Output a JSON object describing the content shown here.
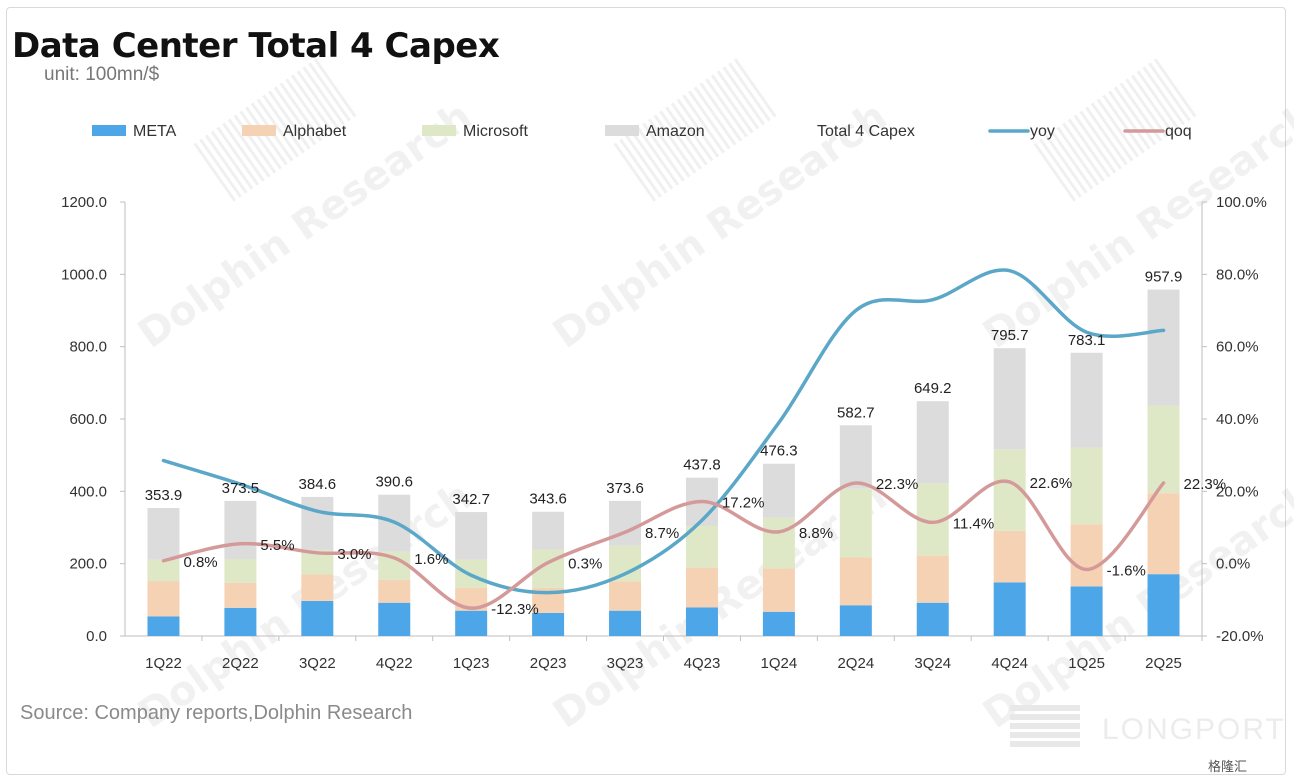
{
  "watermark": "Dolphin Research",
  "logo_text": "LONGPORT",
  "badge_text": "格隆汇",
  "chart_data": {
    "type": "bar",
    "title": "Data Center Total 4 Capex",
    "unit": "unit: 100mn/$",
    "source": "Source: Company reports,Dolphin Research",
    "categories": [
      "1Q22",
      "2Q22",
      "3Q22",
      "4Q22",
      "1Q23",
      "2Q23",
      "3Q23",
      "4Q23",
      "1Q24",
      "2Q24",
      "3Q24",
      "4Q24",
      "1Q25",
      "2Q25"
    ],
    "stacked": true,
    "series": [
      {
        "name": "META",
        "color": "#4da6e8",
        "values": [
          54,
          78,
          97,
          92,
          70,
          64,
          70,
          79,
          67,
          85,
          92,
          148,
          137,
          171
        ]
      },
      {
        "name": "Alphabet",
        "color": "#f6d2b4",
        "values": [
          98,
          69,
          73,
          63,
          63,
          69,
          81,
          110,
          120,
          132,
          130,
          143,
          172,
          224
        ]
      },
      {
        "name": "Microsoft",
        "color": "#dfe8c6",
        "values": [
          59,
          66,
          68,
          78,
          78,
          106,
          99,
          115,
          140,
          190,
          200,
          225,
          212,
          242
        ]
      },
      {
        "name": "Amazon",
        "color": "#dcdcdc",
        "values": [
          142.9,
          160.5,
          146.6,
          157.6,
          131.7,
          104.6,
          123.6,
          133.8,
          149.3,
          175.7,
          227.2,
          279.7,
          262.1,
          320.9
        ]
      }
    ],
    "totals": {
      "name": "Total 4 Capex",
      "values": [
        353.9,
        373.5,
        384.6,
        390.6,
        342.7,
        343.6,
        373.6,
        437.8,
        476.3,
        582.7,
        649.2,
        795.7,
        783.1,
        957.9
      ],
      "labels": [
        "353.9",
        "373.5",
        "384.6",
        "390.6",
        "342.7",
        "343.6",
        "373.6",
        "437.8",
        "476.3",
        "582.7",
        "649.2",
        "795.7",
        "783.1",
        "957.9"
      ]
    },
    "lines": [
      {
        "name": "yoy",
        "color": "#5aa7c8",
        "axis": "right",
        "values": [
          28.5,
          22.0,
          14.5,
          11.5,
          -3.2,
          -8.0,
          -2.8,
          12.0,
          39.0,
          70.0,
          73.0,
          81.0,
          64.0,
          64.5
        ]
      },
      {
        "name": "qoq",
        "color": "#d49a9a",
        "axis": "right",
        "values": [
          0.8,
          5.5,
          3.0,
          1.6,
          -12.3,
          0.3,
          8.7,
          17.2,
          8.8,
          22.3,
          11.4,
          22.6,
          -1.6,
          22.3
        ],
        "labels": [
          "0.8%",
          "5.5%",
          "3.0%",
          "1.6%",
          "-12.3%",
          "0.3%",
          "8.7%",
          "17.2%",
          "8.8%",
          "22.3%",
          "11.4%",
          "22.6%",
          "-1.6%",
          "22.3%"
        ]
      }
    ],
    "ylim": [
      0,
      1200
    ],
    "yticks": [
      "0.0",
      "200.0",
      "400.0",
      "600.0",
      "800.0",
      "1000.0",
      "1200.0"
    ],
    "y2lim": [
      -20,
      100
    ],
    "y2ticks": [
      "-20.0%",
      "0.0%",
      "20.0%",
      "40.0%",
      "60.0%",
      "80.0%",
      "100.0%"
    ],
    "legend_position": "top",
    "grid": false
  }
}
